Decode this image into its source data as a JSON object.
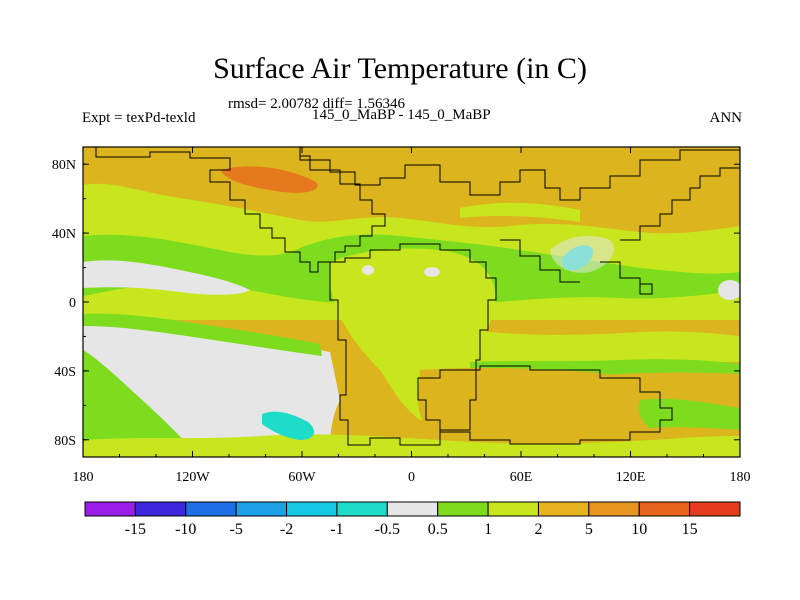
{
  "chart_data": {
    "type": "heatmap",
    "title": "Surface Air Temperature (in C)",
    "stats_text": "rmsd= 2.00782 diff= 1.56346",
    "left_label": "Expt = texPd-texld",
    "center_label": "145_0_MaBP - 145_0_MaBP",
    "right_label": "ANN",
    "x_ticks": [
      {
        "label": "180",
        "value": -180
      },
      {
        "label": "120W",
        "value": -120
      },
      {
        "label": "60W",
        "value": -60
      },
      {
        "label": "0",
        "value": 0
      },
      {
        "label": "60E",
        "value": 60
      },
      {
        "label": "120E",
        "value": 120
      },
      {
        "label": "180",
        "value": 180
      }
    ],
    "y_ticks": [
      {
        "label": "80N",
        "value": 80
      },
      {
        "label": "40N",
        "value": 40
      },
      {
        "label": "0",
        "value": 0
      },
      {
        "label": "40S",
        "value": -40
      },
      {
        "label": "80S",
        "value": -80
      }
    ],
    "xlim": [
      -180,
      180
    ],
    "ylim": [
      -90,
      90
    ],
    "colorbar": {
      "levels": [
        "-15",
        "-10",
        "-5",
        "-2",
        "-1",
        "-0.5",
        "0.5",
        "1",
        "2",
        "5",
        "10",
        "15"
      ],
      "colors": [
        "#9a1ee6",
        "#3c28dc",
        "#1e6ee6",
        "#1ea0e6",
        "#14c8e6",
        "#1edcc8",
        "#e6e6e6",
        "#7ddc1e",
        "#c8e61e",
        "#e6b41e",
        "#e6961e",
        "#e6641e",
        "#e63c1e"
      ]
    },
    "regions": [
      {
        "name": "northern-midlatitude-warm-band",
        "value": 5,
        "color": "#dcb41e"
      },
      {
        "name": "subtropical-north-band",
        "value": 1.5,
        "color": "#c8e61e"
      },
      {
        "name": "north-atlantic-near-zero-band",
        "value": 0,
        "color": "#e6e6e6"
      },
      {
        "name": "equatorial-green-band",
        "value": 0.8,
        "color": "#7ddc1e"
      },
      {
        "name": "southern-subtropical-band",
        "value": 1.5,
        "color": "#c8e61e"
      },
      {
        "name": "south-pacific-near-zero-region",
        "value": 0,
        "color": "#e6e6e6"
      },
      {
        "name": "southern-cool-anomaly",
        "value": -1,
        "color": "#1edcc8"
      },
      {
        "name": "southern-warm-continent",
        "value": 5,
        "color": "#dcb41e"
      },
      {
        "name": "arctic-hot-spot",
        "value": 10,
        "color": "#e6781e"
      }
    ]
  }
}
